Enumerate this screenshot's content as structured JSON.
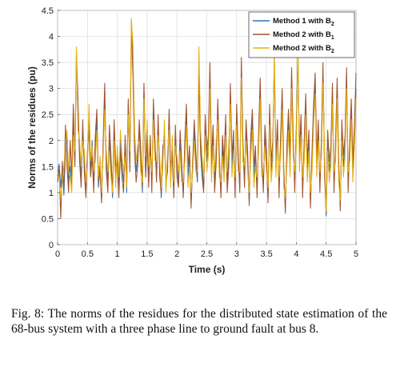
{
  "caption": "Fig. 8: The norms of the residues for the distributed state estimation of the 68-bus system with a three phase line to ground fault at bus 8.",
  "chart_data": {
    "type": "line",
    "xlabel": "Time (s)",
    "ylabel": "Norms of the residues (pu)",
    "xlim": [
      0,
      5
    ],
    "ylim": [
      0,
      4.5
    ],
    "xticks": [
      "0",
      "0.5",
      "1",
      "1.5",
      "2",
      "2.5",
      "3",
      "3.5",
      "4",
      "4.5",
      "5"
    ],
    "yticks": [
      "0",
      "0.5",
      "1",
      "1.5",
      "2",
      "2.5",
      "3",
      "3.5",
      "4",
      "4.5"
    ],
    "grid": true,
    "legend_position": "top-right",
    "series": [
      {
        "name_main": "Method 1 with B",
        "name_sub": "2",
        "color": "#2E73B8"
      },
      {
        "name_main": "Method 2 with B",
        "name_sub": "1",
        "color": "#A0522D"
      },
      {
        "name_main": "Method 2 with B",
        "name_sub": "2",
        "color": "#E8B00F"
      }
    ],
    "x_step": 0.025,
    "series_values": {
      "method1_b2": [
        1.32,
        1.55,
        1.1,
        1.45,
        0.95,
        1.8,
        2.1,
        1.2,
        1.5,
        1.1,
        2.3,
        1.6,
        3.6,
        2.5,
        1.8,
        1.3,
        2.2,
        1.6,
        1.0,
        1.7,
        2.5,
        1.4,
        2.0,
        1.2,
        1.8,
        2.4,
        1.1,
        1.5,
        0.85,
        1.9,
        2.8,
        1.6,
        1.2,
        2.0,
        1.5,
        0.9,
        2.2,
        1.3,
        1.7,
        1.1,
        2.0,
        1.5,
        1.2,
        1.9,
        1.0,
        2.7,
        1.6,
        4.2,
        3.5,
        2.0,
        1.4,
        1.7,
        2.2,
        1.6,
        1.0,
        3.0,
        1.5,
        2.2,
        1.3,
        1.9,
        1.2,
        2.6,
        1.8,
        1.4,
        2.3,
        1.5,
        0.9,
        1.7,
        2.2,
        1.1,
        1.6,
        2.4,
        1.3,
        1.9,
        1.0,
        2.1,
        1.5,
        1.2,
        2.0,
        1.4,
        1.0,
        1.8,
        2.5,
        1.3,
        1.7,
        0.8,
        1.5,
        2.2,
        1.6,
        1.2,
        3.5,
        2.0,
        1.5,
        1.1,
        2.3,
        1.6,
        1.9,
        3.2,
        1.4,
        2.1,
        1.2,
        1.8,
        2.6,
        1.5,
        1.0,
        1.9,
        1.4,
        2.3,
        1.2,
        1.7,
        2.9,
        1.5,
        2.0,
        1.1,
        2.5,
        1.6,
        1.2,
        3.4,
        1.8,
        1.3,
        2.2,
        1.6,
        0.85,
        1.9,
        2.4,
        1.3,
        1.7,
        1.1,
        2.0,
        3.0,
        1.5,
        1.2,
        2.1,
        1.6,
        0.9,
        2.5,
        1.4,
        1.8,
        3.6,
        1.5,
        2.2,
        1.1,
        1.9,
        2.8,
        1.3,
        0.7,
        1.7,
        2.4,
        1.5,
        3.2,
        1.9,
        1.2,
        2.1,
        3.8,
        1.6,
        2.3,
        1.1,
        1.8,
        2.7,
        1.4,
        2.0,
        0.8,
        1.6,
        2.5,
        3.1,
        1.5,
        2.2,
        1.2,
        1.9,
        3.3,
        1.5,
        0.55,
        2.0,
        1.4,
        1.7,
        2.9,
        1.2,
        1.8,
        3.0,
        1.4,
        0.75,
        2.2,
        1.5,
        1.9,
        3.2,
        1.2,
        1.8,
        2.6,
        1.4,
        2.1,
        3.0
      ],
      "method2_b1": [
        1.2,
        1.45,
        0.5,
        1.6,
        1.1,
        2.3,
        1.5,
        1.0,
        2.0,
        1.3,
        2.7,
        1.5,
        3.7,
        2.8,
        1.6,
        1.1,
        2.4,
        1.4,
        0.9,
        1.8,
        2.2,
        1.3,
        1.7,
        1.0,
        2.1,
        2.6,
        1.2,
        1.4,
        0.8,
        2.0,
        3.1,
        1.4,
        1.0,
        2.3,
        1.7,
        1.0,
        2.4,
        1.5,
        1.6,
        0.9,
        1.8,
        1.3,
        1.0,
        2.1,
        1.2,
        2.8,
        1.4,
        4.3,
        3.2,
        1.8,
        1.2,
        1.5,
        2.4,
        1.8,
        1.1,
        3.1,
        1.3,
        2.0,
        1.1,
        2.1,
        1.0,
        2.8,
        2.0,
        1.2,
        2.5,
        1.3,
        1.0,
        1.9,
        2.0,
        1.2,
        1.4,
        2.6,
        1.5,
        1.7,
        0.9,
        2.3,
        1.3,
        1.1,
        2.2,
        1.6,
        0.9,
        2.0,
        2.7,
        1.5,
        1.9,
        0.7,
        1.6,
        2.4,
        1.8,
        1.3,
        3.2,
        1.8,
        1.3,
        1.0,
        2.5,
        1.8,
        2.1,
        3.5,
        1.6,
        2.3,
        1.0,
        1.6,
        2.8,
        1.7,
        0.9,
        2.1,
        1.6,
        2.5,
        1.0,
        1.5,
        3.1,
        1.7,
        2.2,
        0.9,
        2.7,
        1.8,
        1.0,
        3.6,
        2.0,
        1.1,
        2.4,
        1.8,
        0.75,
        2.1,
        2.6,
        1.5,
        1.9,
        0.9,
        2.2,
        3.2,
        1.7,
        1.0,
        2.3,
        1.8,
        0.8,
        2.7,
        1.6,
        2.0,
        3.4,
        1.7,
        2.4,
        0.9,
        2.1,
        3.0,
        1.5,
        0.6,
        1.9,
        2.6,
        1.7,
        3.4,
        2.1,
        1.0,
        2.3,
        3.6,
        1.8,
        2.5,
        0.9,
        2.0,
        2.9,
        1.6,
        2.2,
        0.7,
        1.8,
        2.7,
        3.3,
        1.7,
        2.4,
        1.0,
        2.1,
        3.5,
        1.3,
        0.6,
        2.2,
        1.6,
        1.9,
        3.1,
        1.0,
        2.0,
        3.2,
        1.6,
        0.65,
        2.4,
        1.7,
        2.1,
        3.4,
        1.0,
        2.0,
        2.8,
        1.6,
        2.3,
        3.3
      ],
      "method2_b2": [
        1.4,
        1.3,
        0.9,
        1.2,
        1.5,
        1.9,
        2.2,
        1.4,
        1.3,
        1.0,
        2.1,
        1.8,
        3.8,
        2.2,
        2.0,
        1.5,
        2.0,
        1.8,
        1.2,
        1.5,
        2.7,
        1.6,
        1.9,
        1.4,
        1.6,
        2.2,
        1.3,
        1.7,
        1.0,
        1.7,
        2.6,
        1.8,
        1.4,
        1.8,
        1.3,
        1.0,
        2.0,
        1.1,
        1.9,
        1.3,
        2.2,
        1.7,
        1.4,
        1.7,
        1.1,
        2.5,
        1.8,
        4.35,
        3.8,
        2.2,
        1.6,
        1.9,
        2.0,
        1.4,
        1.2,
        2.8,
        1.7,
        2.4,
        1.5,
        1.7,
        1.4,
        2.4,
        1.6,
        1.6,
        2.1,
        1.7,
        1.1,
        1.5,
        2.4,
        1.0,
        1.8,
        2.2,
        1.1,
        2.1,
        1.2,
        1.9,
        1.7,
        1.4,
        1.8,
        1.2,
        1.2,
        1.6,
        2.3,
        1.1,
        1.5,
        1.0,
        1.4,
        2.0,
        1.4,
        1.4,
        3.8,
        2.2,
        1.7,
        1.3,
        2.1,
        1.4,
        1.7,
        3.0,
        1.2,
        1.9,
        1.4,
        2.0,
        2.4,
        1.3,
        1.2,
        1.7,
        1.2,
        2.1,
        1.4,
        1.9,
        2.7,
        1.3,
        1.8,
        1.3,
        2.3,
        1.4,
        1.4,
        3.2,
        1.6,
        1.5,
        2.0,
        1.4,
        1.0,
        1.7,
        2.2,
        1.1,
        1.5,
        1.3,
        1.8,
        2.8,
        1.3,
        1.4,
        1.9,
        1.4,
        1.1,
        2.3,
        1.2,
        1.6,
        3.8,
        1.3,
        2.0,
        1.3,
        1.7,
        2.6,
        1.1,
        0.9,
        1.5,
        2.2,
        1.3,
        3.0,
        1.7,
        1.4,
        1.9,
        4.0,
        1.4,
        2.1,
        1.3,
        1.6,
        2.5,
        1.2,
        1.8,
        1.0,
        1.4,
        2.3,
        2.9,
        1.3,
        2.0,
        1.4,
        1.7,
        3.1,
        1.7,
        0.65,
        1.8,
        1.2,
        1.5,
        2.7,
        1.4,
        1.6,
        2.8,
        1.2,
        0.85,
        2.0,
        1.3,
        1.7,
        3.0,
        1.4,
        1.6,
        2.4,
        1.2,
        1.9,
        2.8
      ]
    }
  }
}
